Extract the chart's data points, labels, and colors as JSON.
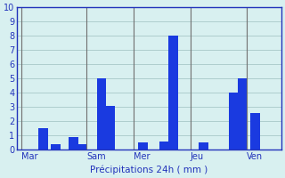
{
  "xlabel": "Précipitations 24h ( mm )",
  "background_color": "#d8f0f0",
  "bar_color": "#1a3ae0",
  "grid_color": "#a8c8c8",
  "ylim": [
    0,
    10
  ],
  "yticks": [
    0,
    1,
    2,
    3,
    4,
    5,
    6,
    7,
    8,
    9,
    10
  ],
  "day_labels": [
    "Mar",
    "Sam",
    "Mer",
    "Jeu",
    "Ven"
  ],
  "separator_positions": [
    0,
    30,
    52,
    78,
    104
  ],
  "bar_positions": [
    10,
    16,
    24,
    28,
    37,
    41,
    56,
    66,
    70,
    84,
    98,
    102,
    108
  ],
  "bar_heights": [
    1.5,
    0.4,
    0.9,
    0.4,
    5.0,
    3.1,
    0.5,
    0.6,
    8.0,
    0.5,
    4.0,
    5.0,
    2.6
  ],
  "xlim": [
    -2,
    120
  ],
  "bar_width": 4.5,
  "xlabel_color": "#2233bb",
  "tick_color": "#2233bb",
  "sep_color": "#707070",
  "spine_color": "#2233bb"
}
